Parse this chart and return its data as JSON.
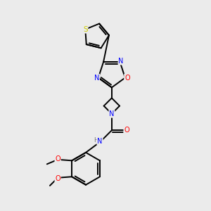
{
  "background_color": "#ebebeb",
  "bond_color": "#000000",
  "atom_colors": {
    "N": "#0000ff",
    "O": "#ff0000",
    "S": "#cccc00",
    "C": "#000000",
    "H": "#777777"
  },
  "figsize": [
    3.0,
    3.0
  ],
  "dpi": 100
}
